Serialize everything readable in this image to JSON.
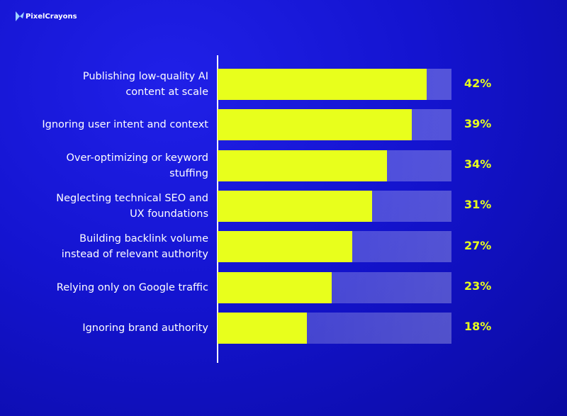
{
  "brand": "PixelCrayons",
  "chart_data": {
    "type": "hbar",
    "categories": [
      "Publishing low-quality AI\ncontent at scale",
      "Ignoring user intent and context",
      "Over-optimizing or keyword\nstuffing",
      "Neglecting technical SEO and\nUX foundations",
      "Building backlink volume\ninstead of relevant authority",
      "Relying only on Google traffic",
      "Ignoring brand authority"
    ],
    "values": [
      42,
      39,
      34,
      31,
      27,
      23,
      18
    ],
    "value_labels": [
      "42%",
      "39%",
      "34%",
      "31%",
      "27%",
      "23%",
      "18%"
    ],
    "color": "#e8ff1c",
    "xlim": [
      0,
      47
    ]
  }
}
